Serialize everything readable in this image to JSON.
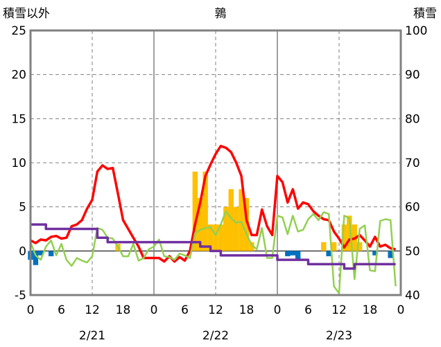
{
  "chart_data": {
    "type": "line",
    "title": "鶉",
    "y_left_label": "積雪以外",
    "y_right_label": "積雪",
    "y_left_range": [
      -5,
      25
    ],
    "y_right_range": [
      40,
      100
    ],
    "y_left_ticks": [
      "25",
      "20",
      "15",
      "10",
      "5",
      "0",
      "-5"
    ],
    "y_right_ticks": [
      "100",
      "90",
      "80",
      "70",
      "60",
      "50",
      "40"
    ],
    "x_range": [
      0,
      72
    ],
    "x_ticks": [
      "0",
      "6",
      "12",
      "18",
      "0",
      "6",
      "12",
      "18",
      "0",
      "6",
      "12",
      "18",
      "0"
    ],
    "date_labels": [
      "2/21",
      "2/22",
      "2/23"
    ],
    "colors": {
      "red": "#ff0000",
      "green": "#92d050",
      "purple": "#7030a0",
      "orange": "#ffc000",
      "blue": "#0070c0",
      "grid": "#808080",
      "frame": "#808080"
    },
    "series": [
      {
        "axis": "left",
        "color": "red",
        "type": "line",
        "points": [
          [
            0,
            1.2
          ],
          [
            1,
            0.9
          ],
          [
            2,
            1.3
          ],
          [
            3,
            1.2
          ],
          [
            4,
            1.6
          ],
          [
            5,
            1.7
          ],
          [
            6,
            1.4
          ],
          [
            7,
            1.5
          ],
          [
            8,
            2.8
          ],
          [
            9,
            3.0
          ],
          [
            10,
            3.5
          ],
          [
            11,
            4.8
          ],
          [
            12,
            5.8
          ],
          [
            13,
            9.0
          ],
          [
            14,
            9.7
          ],
          [
            15,
            9.3
          ],
          [
            16,
            9.4
          ],
          [
            17,
            6.5
          ],
          [
            18,
            3.5
          ],
          [
            19,
            2.5
          ],
          [
            20,
            1.5
          ],
          [
            21,
            0.5
          ],
          [
            22,
            -0.8
          ],
          [
            23,
            -0.8
          ],
          [
            24,
            -0.8
          ],
          [
            25,
            -0.8
          ],
          [
            26,
            -1.2
          ],
          [
            27,
            -0.6
          ],
          [
            28,
            -1.2
          ],
          [
            29,
            -0.7
          ],
          [
            30,
            -1.1
          ],
          [
            31,
            0.0
          ],
          [
            32,
            3.0
          ],
          [
            33,
            5.5
          ],
          [
            34,
            8.5
          ],
          [
            35,
            9.8
          ],
          [
            36,
            11.0
          ],
          [
            37,
            11.9
          ],
          [
            38,
            11.7
          ],
          [
            39,
            11.2
          ],
          [
            40,
            10.0
          ],
          [
            41,
            8.5
          ],
          [
            42,
            3.5
          ],
          [
            43,
            1.8
          ],
          [
            44,
            1.8
          ],
          [
            45,
            4.7
          ],
          [
            46,
            2.8
          ],
          [
            47,
            1.8
          ],
          [
            48,
            8.5
          ],
          [
            49,
            7.8
          ],
          [
            50,
            5.5
          ],
          [
            51,
            7.0
          ],
          [
            52,
            4.8
          ],
          [
            53,
            5.5
          ],
          [
            54,
            5.3
          ],
          [
            55,
            4.5
          ],
          [
            56,
            4.0
          ],
          [
            57,
            3.6
          ],
          [
            58,
            3.5
          ],
          [
            59,
            2.2
          ],
          [
            60,
            1.4
          ],
          [
            61,
            0.4
          ],
          [
            62,
            1.3
          ],
          [
            63,
            1.4
          ],
          [
            64,
            1.8
          ],
          [
            65,
            1.2
          ],
          [
            66,
            0.5
          ],
          [
            67,
            1.6
          ],
          [
            68,
            0.5
          ],
          [
            69,
            0.7
          ],
          [
            70,
            0.3
          ],
          [
            71,
            0.2
          ]
        ]
      },
      {
        "axis": "left",
        "color": "green",
        "type": "line",
        "points": [
          [
            0,
            1.0
          ],
          [
            1,
            -0.5
          ],
          [
            2,
            -1.0
          ],
          [
            3,
            0.5
          ],
          [
            4,
            1.2
          ],
          [
            5,
            -0.5
          ],
          [
            6,
            0.8
          ],
          [
            7,
            -1.0
          ],
          [
            8,
            -1.7
          ],
          [
            9,
            -0.8
          ],
          [
            10,
            -1.1
          ],
          [
            11,
            -1.3
          ],
          [
            12,
            -0.6
          ],
          [
            13,
            2.6
          ],
          [
            14,
            2.4
          ],
          [
            15,
            1.5
          ],
          [
            16,
            1.4
          ],
          [
            17,
            0.5
          ],
          [
            18,
            -0.6
          ],
          [
            19,
            -0.6
          ],
          [
            20,
            0.8
          ],
          [
            21,
            -1.1
          ],
          [
            22,
            -0.8
          ],
          [
            23,
            0.2
          ],
          [
            24,
            0.5
          ],
          [
            25,
            1.3
          ],
          [
            26,
            -0.6
          ],
          [
            27,
            -0.7
          ],
          [
            28,
            -1.0
          ],
          [
            29,
            -0.3
          ],
          [
            30,
            -0.5
          ],
          [
            31,
            -0.8
          ],
          [
            32,
            2.0
          ],
          [
            33,
            2.4
          ],
          [
            34,
            2.6
          ],
          [
            35,
            2.7
          ],
          [
            36,
            1.8
          ],
          [
            37,
            3.0
          ],
          [
            38,
            4.5
          ],
          [
            39,
            3.7
          ],
          [
            40,
            3.2
          ],
          [
            41,
            3.3
          ],
          [
            42,
            1.9
          ],
          [
            43,
            0.7
          ],
          [
            44,
            0.2
          ],
          [
            45,
            2.6
          ],
          [
            46,
            -0.8
          ],
          [
            47,
            -0.8
          ],
          [
            48,
            4.0
          ],
          [
            49,
            3.8
          ],
          [
            50,
            1.9
          ],
          [
            51,
            4.0
          ],
          [
            52,
            2.2
          ],
          [
            53,
            2.4
          ],
          [
            54,
            3.6
          ],
          [
            55,
            4.2
          ],
          [
            56,
            3.5
          ],
          [
            57,
            4.4
          ],
          [
            58,
            4.2
          ],
          [
            59,
            -4.0
          ],
          [
            60,
            -4.8
          ],
          [
            61,
            4.0
          ],
          [
            62,
            3.7
          ],
          [
            63,
            -3.2
          ],
          [
            64,
            2.5
          ],
          [
            65,
            2.9
          ],
          [
            66,
            -2.2
          ],
          [
            67,
            -2.3
          ],
          [
            68,
            3.4
          ],
          [
            69,
            3.6
          ],
          [
            70,
            3.5
          ],
          [
            71,
            -4.0
          ]
        ]
      },
      {
        "axis": "right",
        "color": "purple",
        "type": "step",
        "points": [
          [
            0,
            56
          ],
          [
            2,
            56
          ],
          [
            3,
            55
          ],
          [
            11,
            55
          ],
          [
            13,
            53
          ],
          [
            14,
            53
          ],
          [
            15,
            52
          ],
          [
            31,
            52
          ],
          [
            32,
            52
          ],
          [
            33,
            51
          ],
          [
            34,
            51
          ],
          [
            35,
            50
          ],
          [
            36,
            50
          ],
          [
            37,
            49
          ],
          [
            47,
            49
          ],
          [
            48,
            48
          ],
          [
            53,
            48
          ],
          [
            54,
            47
          ],
          [
            60,
            47
          ],
          [
            61,
            46
          ],
          [
            62,
            46
          ],
          [
            63,
            47
          ],
          [
            71,
            47
          ]
        ]
      },
      {
        "axis": "left",
        "color": "orange",
        "type": "bar",
        "points": [
          [
            17,
            0.8
          ],
          [
            32,
            9.0
          ],
          [
            33,
            6.0
          ],
          [
            34,
            9.0
          ],
          [
            35,
            3.0
          ],
          [
            36,
            3.0
          ],
          [
            37,
            3.0
          ],
          [
            38,
            5.0
          ],
          [
            39,
            7.0
          ],
          [
            40,
            5.0
          ],
          [
            41,
            7.0
          ],
          [
            42,
            6.0
          ],
          [
            43,
            1.0
          ],
          [
            57,
            1.0
          ],
          [
            59,
            1.0
          ],
          [
            61,
            3.0
          ],
          [
            62,
            4.0
          ],
          [
            63,
            3.0
          ],
          [
            64,
            1.0
          ]
        ]
      },
      {
        "axis": "left",
        "color": "blue",
        "type": "bar",
        "points": [
          [
            0,
            -1.0
          ],
          [
            1,
            -1.6
          ],
          [
            2,
            -0.5
          ],
          [
            4,
            -0.6
          ],
          [
            50,
            -0.6
          ],
          [
            51,
            -0.5
          ],
          [
            52,
            -1.1
          ],
          [
            58,
            -0.6
          ],
          [
            67,
            -0.5
          ],
          [
            70,
            -0.8
          ]
        ]
      }
    ]
  }
}
